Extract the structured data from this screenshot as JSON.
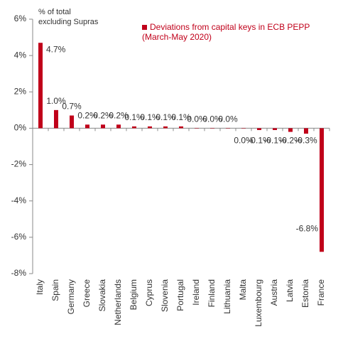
{
  "chart_data": {
    "type": "bar",
    "y_label": "% of total excluding Supras",
    "categories": [
      "Italy",
      "Spain",
      "Germany",
      "Greece",
      "Slovakia",
      "Netherlands",
      "Belgium",
      "Cyprus",
      "Slovenia",
      "Portugal",
      "Ireland",
      "Finland",
      "Lithuania",
      "Malta",
      "Luxembourg",
      "Austria",
      "Latvia",
      "Estonia",
      "France"
    ],
    "series": [
      {
        "name": "Deviations from capital keys in ECB PEPP (March-May 2020)",
        "color": "#c0001a",
        "values": [
          4.7,
          1.0,
          0.7,
          0.2,
          0.2,
          0.2,
          0.1,
          0.1,
          0.1,
          0.1,
          0.0,
          0.0,
          0.0,
          0.0,
          -0.1,
          -0.1,
          -0.2,
          -0.3,
          -6.8
        ],
        "value_labels": [
          "4.7%",
          "1.0%",
          "0.7%",
          "0.2%",
          "0.2%",
          "0.2%",
          "0.1%",
          "0.1%",
          "0.1%",
          "0.1%",
          "0.0%",
          "0.0%",
          "0.0%",
          "0.0%",
          "-0.1%",
          "-0.1%",
          "-0.2%",
          "-0.3%",
          "-6.8%"
        ]
      }
    ],
    "ylim": [
      -8,
      6
    ],
    "yticks": [
      {
        "value": -8,
        "label": "-8%"
      },
      {
        "value": -6,
        "label": "-6%"
      },
      {
        "value": -4,
        "label": "-4%"
      },
      {
        "value": -2,
        "label": "-2%"
      },
      {
        "value": 0,
        "label": "0%"
      },
      {
        "value": 2,
        "label": "2%"
      },
      {
        "value": 4,
        "label": "4%"
      },
      {
        "value": 6,
        "label": "6%"
      }
    ],
    "legend": "top-right",
    "grid": false
  }
}
